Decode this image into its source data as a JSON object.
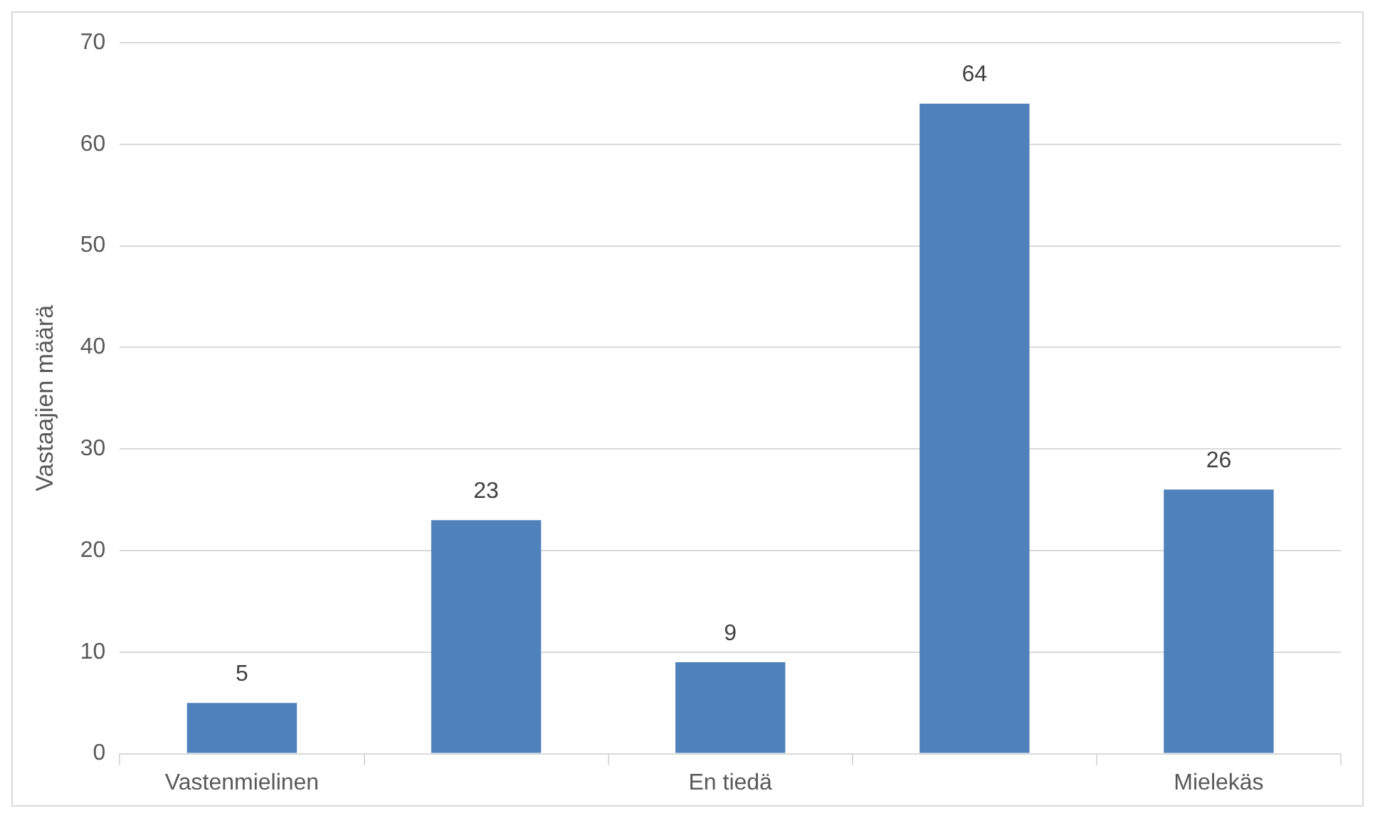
{
  "chart_data": {
    "type": "bar",
    "ylabel": "Vastaajien määrä",
    "categories": [
      "Vastenmielinen",
      null,
      "En tiedä",
      null,
      "Mielekäs"
    ],
    "values": [
      5,
      23,
      9,
      64,
      26
    ],
    "color": "#4f81bd",
    "ylim": [
      0,
      70
    ],
    "yticks": [
      0,
      10,
      20,
      30,
      40,
      50,
      60,
      70
    ],
    "grid": "y",
    "data_labels": true,
    "legend": false
  }
}
